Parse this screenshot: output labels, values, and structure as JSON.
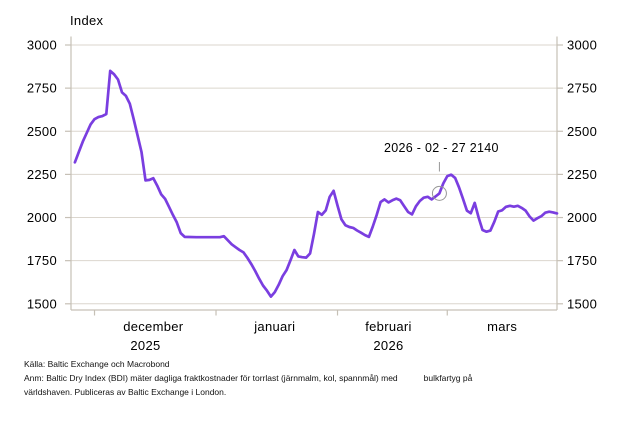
{
  "title": "Index",
  "annotation": {
    "text": "2026 - 02 - 27 2140",
    "date": "2026-02-27",
    "value": 2140
  },
  "footer": {
    "source": "Källa: Baltic Exchange  och Macrobond",
    "note_part1": "Anm: Baltic Dry Index (BDI) mäter dagliga fraktkostnader för torrlast (järnmalm, kol, spannmål) med",
    "note_part2": "bulkfartyg på",
    "note_line2": "världshaven. Publiceras av Baltic Exchange i London."
  },
  "colors": {
    "line": "#7A3EE0",
    "grid": "#DBD6CE",
    "axis": "#C6C0B6",
    "marker": "#979797",
    "text": "#000000",
    "background": "#FFFFFF"
  },
  "x_axis": {
    "month_starts": [
      "2025-12-01",
      "2026-01-01",
      "2026-02-01",
      "2026-03-01"
    ],
    "month_labels": [
      {
        "label": "december",
        "center": "2025-12-16"
      },
      {
        "label": "januari",
        "center": "2026-01-16"
      },
      {
        "label": "februari",
        "center": "2026-02-14"
      },
      {
        "label": "mars",
        "center": "2026-03-15"
      }
    ],
    "year_labels": [
      {
        "label": "2025",
        "center": "2025-12-14"
      },
      {
        "label": "2026",
        "center": "2026-02-14"
      }
    ]
  },
  "chart_data": {
    "type": "line",
    "title": "Index",
    "xlabel": "",
    "ylabel": "Index",
    "grid": "horizontal",
    "legend": "none",
    "x_domain": [
      "2025-11-25",
      "2026-03-29"
    ],
    "ylim": [
      1500,
      3000
    ],
    "y_ticks": [
      3000,
      2750,
      2500,
      2250,
      2000,
      1750,
      1500
    ],
    "x_tick_labels": [
      "december 2025",
      "januari",
      "februari 2026",
      "mars"
    ],
    "annotation_point": {
      "date": "2026-02-27",
      "value": 2140,
      "label": "2026 - 02 - 27 2140"
    },
    "series": [
      {
        "name": "Baltic Dry Index (BDI)",
        "color": "#7A3EE0",
        "points": [
          [
            "2025-11-26",
            2320
          ],
          [
            "2025-11-27",
            2380
          ],
          [
            "2025-11-28",
            2440
          ],
          [
            "2025-11-29",
            2490
          ],
          [
            "2025-11-30",
            2540
          ],
          [
            "2025-12-01",
            2570
          ],
          [
            "2025-12-02",
            2582
          ],
          [
            "2025-12-03",
            2588
          ],
          [
            "2025-12-04",
            2600
          ],
          [
            "2025-12-05",
            2850
          ],
          [
            "2025-12-06",
            2830
          ],
          [
            "2025-12-07",
            2800
          ],
          [
            "2025-12-08",
            2725
          ],
          [
            "2025-12-09",
            2705
          ],
          [
            "2025-12-10",
            2660
          ],
          [
            "2025-12-11",
            2570
          ],
          [
            "2025-12-12",
            2475
          ],
          [
            "2025-12-13",
            2380
          ],
          [
            "2025-12-14",
            2215
          ],
          [
            "2025-12-15",
            2218
          ],
          [
            "2025-12-16",
            2228
          ],
          [
            "2025-12-17",
            2185
          ],
          [
            "2025-12-18",
            2135
          ],
          [
            "2025-12-19",
            2108
          ],
          [
            "2025-12-20",
            2062
          ],
          [
            "2025-12-21",
            2015
          ],
          [
            "2025-12-22",
            1972
          ],
          [
            "2025-12-23",
            1910
          ],
          [
            "2025-12-24",
            1888
          ],
          [
            "2025-12-27",
            1886
          ],
          [
            "2025-12-31",
            1886
          ],
          [
            "2026-01-02",
            1886
          ],
          [
            "2026-01-03",
            1892
          ],
          [
            "2026-01-05",
            1845
          ],
          [
            "2026-01-06",
            1828
          ],
          [
            "2026-01-07",
            1812
          ],
          [
            "2026-01-08",
            1798
          ],
          [
            "2026-01-09",
            1766
          ],
          [
            "2026-01-10",
            1730
          ],
          [
            "2026-01-11",
            1690
          ],
          [
            "2026-01-12",
            1646
          ],
          [
            "2026-01-13",
            1606
          ],
          [
            "2026-01-14",
            1576
          ],
          [
            "2026-01-15",
            1542
          ],
          [
            "2026-01-16",
            1568
          ],
          [
            "2026-01-17",
            1610
          ],
          [
            "2026-01-18",
            1660
          ],
          [
            "2026-01-19",
            1696
          ],
          [
            "2026-01-20",
            1752
          ],
          [
            "2026-01-21",
            1812
          ],
          [
            "2026-01-22",
            1775
          ],
          [
            "2026-01-23",
            1770
          ],
          [
            "2026-01-24",
            1768
          ],
          [
            "2026-01-25",
            1792
          ],
          [
            "2026-01-26",
            1905
          ],
          [
            "2026-01-27",
            2032
          ],
          [
            "2026-01-28",
            2016
          ],
          [
            "2026-01-29",
            2042
          ],
          [
            "2026-01-30",
            2120
          ],
          [
            "2026-01-31",
            2155
          ],
          [
            "2026-02-01",
            2070
          ],
          [
            "2026-02-02",
            1990
          ],
          [
            "2026-02-03",
            1955
          ],
          [
            "2026-02-04",
            1945
          ],
          [
            "2026-02-05",
            1940
          ],
          [
            "2026-02-06",
            1925
          ],
          [
            "2026-02-07",
            1912
          ],
          [
            "2026-02-08",
            1898
          ],
          [
            "2026-02-09",
            1888
          ],
          [
            "2026-02-10",
            1948
          ],
          [
            "2026-02-11",
            2015
          ],
          [
            "2026-02-12",
            2090
          ],
          [
            "2026-02-13",
            2105
          ],
          [
            "2026-02-14",
            2088
          ],
          [
            "2026-02-15",
            2100
          ],
          [
            "2026-02-16",
            2110
          ],
          [
            "2026-02-17",
            2100
          ],
          [
            "2026-02-18",
            2066
          ],
          [
            "2026-02-19",
            2032
          ],
          [
            "2026-02-20",
            2018
          ],
          [
            "2026-02-21",
            2065
          ],
          [
            "2026-02-22",
            2096
          ],
          [
            "2026-02-23",
            2115
          ],
          [
            "2026-02-24",
            2120
          ],
          [
            "2026-02-25",
            2105
          ],
          [
            "2026-02-26",
            2122
          ],
          [
            "2026-02-27",
            2140
          ],
          [
            "2026-02-28",
            2198
          ],
          [
            "2026-03-01",
            2240
          ],
          [
            "2026-03-02",
            2248
          ],
          [
            "2026-03-03",
            2230
          ],
          [
            "2026-03-04",
            2175
          ],
          [
            "2026-03-05",
            2110
          ],
          [
            "2026-03-06",
            2040
          ],
          [
            "2026-03-07",
            2025
          ],
          [
            "2026-03-08",
            2085
          ],
          [
            "2026-03-09",
            2000
          ],
          [
            "2026-03-10",
            1928
          ],
          [
            "2026-03-11",
            1918
          ],
          [
            "2026-03-12",
            1924
          ],
          [
            "2026-03-13",
            1975
          ],
          [
            "2026-03-14",
            2035
          ],
          [
            "2026-03-15",
            2042
          ],
          [
            "2026-03-16",
            2062
          ],
          [
            "2026-03-17",
            2068
          ],
          [
            "2026-03-18",
            2063
          ],
          [
            "2026-03-19",
            2068
          ],
          [
            "2026-03-20",
            2056
          ],
          [
            "2026-03-21",
            2040
          ],
          [
            "2026-03-22",
            2006
          ],
          [
            "2026-03-23",
            1982
          ],
          [
            "2026-03-24",
            1996
          ],
          [
            "2026-03-25",
            2008
          ],
          [
            "2026-03-26",
            2028
          ],
          [
            "2026-03-27",
            2034
          ],
          [
            "2026-03-28",
            2030
          ],
          [
            "2026-03-29",
            2024
          ]
        ]
      }
    ]
  }
}
